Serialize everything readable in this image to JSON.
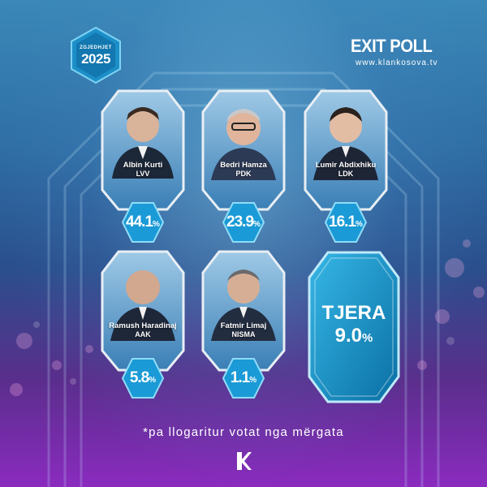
{
  "badge": {
    "line1": "ZGJEDHJET",
    "line2": "2025"
  },
  "header": {
    "title": "EXIT POLL",
    "url": "www.klankosova.tv"
  },
  "candidates": [
    {
      "name": "Albin Kurti",
      "party": "LVV",
      "pct": "44.1",
      "unit": "%"
    },
    {
      "name": "Bedri Hamza",
      "party": "PDK",
      "pct": "23.9",
      "unit": "%"
    },
    {
      "name": "Lumir Abdixhiku",
      "party": "LDK",
      "pct": "16.1",
      "unit": "%"
    },
    {
      "name": "Ramush Haradinaj",
      "party": "AAK",
      "pct": "5.8",
      "unit": "%"
    },
    {
      "name": "Fatmir Limaj",
      "party": "NISMA",
      "pct": "1.1",
      "unit": "%"
    }
  ],
  "others": {
    "label": "TJERA",
    "pct": "9.0",
    "unit": "%"
  },
  "footnote": "*pa llogaritur votat nga mërgata",
  "colors": {
    "accent": "#1fa6d8",
    "accent_dark": "#0b6e9e",
    "frame": "#e8eef4"
  },
  "icons": {
    "channel": "klan-kosova-logo-icon",
    "badge": "election-badge-icon"
  }
}
